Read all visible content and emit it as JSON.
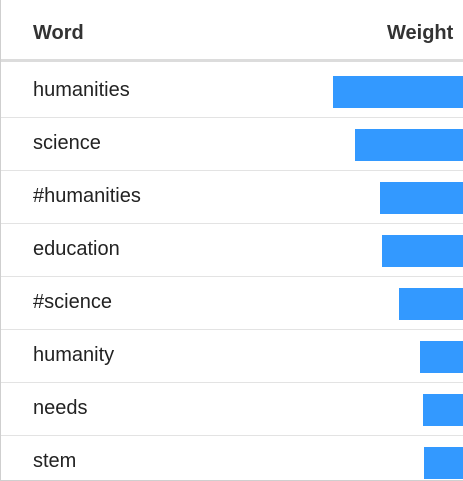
{
  "chart_data": {
    "type": "table",
    "columns": [
      "Word",
      "Weight"
    ],
    "rows": [
      {
        "word": "humanities",
        "weight": 1.0
      },
      {
        "word": "science",
        "weight": 0.83
      },
      {
        "word": "#humanities",
        "weight": 0.64
      },
      {
        "word": "education",
        "weight": 0.62
      },
      {
        "word": "#science",
        "weight": 0.49
      },
      {
        "word": "humanity",
        "weight": 0.33
      },
      {
        "word": "needs",
        "weight": 0.31
      },
      {
        "word": "stem",
        "weight": 0.3
      }
    ],
    "bar_color": "#3399ff"
  }
}
